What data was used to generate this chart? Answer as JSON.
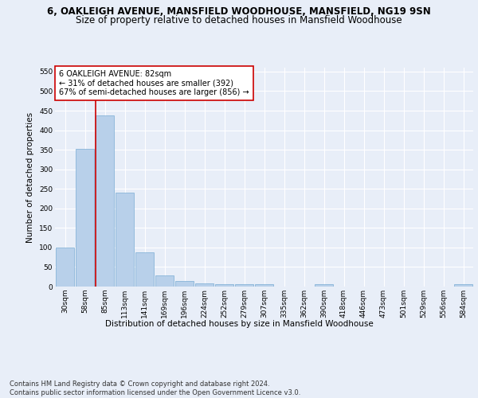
{
  "title_line1": "6, OAKLEIGH AVENUE, MANSFIELD WOODHOUSE, MANSFIELD, NG19 9SN",
  "title_line2": "Size of property relative to detached houses in Mansfield Woodhouse",
  "xlabel": "Distribution of detached houses by size in Mansfield Woodhouse",
  "ylabel": "Number of detached properties",
  "categories": [
    "30sqm",
    "58sqm",
    "85sqm",
    "113sqm",
    "141sqm",
    "169sqm",
    "196sqm",
    "224sqm",
    "252sqm",
    "279sqm",
    "307sqm",
    "335sqm",
    "362sqm",
    "390sqm",
    "418sqm",
    "446sqm",
    "473sqm",
    "501sqm",
    "529sqm",
    "556sqm",
    "584sqm"
  ],
  "values": [
    100,
    352,
    437,
    240,
    88,
    29,
    14,
    9,
    6,
    6,
    6,
    0,
    0,
    6,
    0,
    0,
    0,
    0,
    0,
    0,
    6
  ],
  "bar_color": "#b8d0ea",
  "bar_edge_color": "#7aadd4",
  "vline_color": "#cc0000",
  "vline_bar_index": 2,
  "annotation_text": "6 OAKLEIGH AVENUE: 82sqm\n← 31% of detached houses are smaller (392)\n67% of semi-detached houses are larger (856) →",
  "annotation_box_color": "#ffffff",
  "annotation_box_edge": "#cc0000",
  "ylim": [
    0,
    560
  ],
  "yticks": [
    0,
    50,
    100,
    150,
    200,
    250,
    300,
    350,
    400,
    450,
    500,
    550
  ],
  "footnote": "Contains HM Land Registry data © Crown copyright and database right 2024.\nContains public sector information licensed under the Open Government Licence v3.0.",
  "bg_color": "#e8eef8",
  "plot_bg_color": "#e8eef8",
  "grid_color": "#ffffff",
  "title_fontsize": 8.5,
  "subtitle_fontsize": 8.5,
  "axis_label_fontsize": 7.5,
  "tick_fontsize": 6.5,
  "footnote_fontsize": 6.0,
  "annotation_fontsize": 7.0
}
